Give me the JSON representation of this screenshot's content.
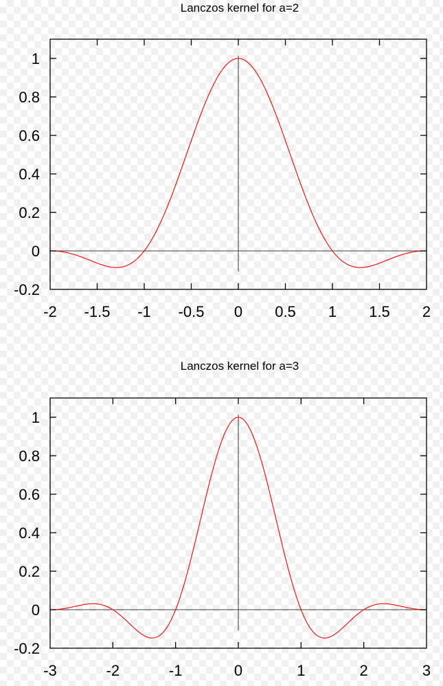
{
  "chart_data": [
    {
      "type": "line",
      "title": "Lanczos kernel for a=2",
      "xlabel": "",
      "ylabel": "",
      "a": 2,
      "xlim": [
        -2,
        2
      ],
      "ylim": [
        -0.2,
        1.1
      ],
      "x_ticks": [
        -2,
        -1.5,
        -1,
        -0.5,
        0,
        0.5,
        1,
        1.5,
        2
      ],
      "x_tick_labels": [
        "-2",
        "-1.5",
        "-1",
        "-0.5",
        "0",
        "0.5",
        "1",
        "1.5",
        "2"
      ],
      "y_ticks": [
        -0.2,
        0,
        0.2,
        0.4,
        0.6,
        0.8,
        1
      ],
      "y_tick_labels": [
        "-0.2",
        "0",
        "0.2",
        "0.4",
        "0.6",
        "0.8",
        "1"
      ],
      "zero_axes": true,
      "grid": false,
      "line_color": "#ff0000",
      "series": [
        {
          "x": [
            -2,
            -1.75,
            -1.5,
            -1.25,
            -1,
            -0.75,
            -0.5,
            -0.25,
            0,
            0.25,
            0.5,
            0.75,
            1,
            1.25,
            1.5,
            1.75,
            2
          ],
          "y": [
            0,
            -0.0336,
            -0.08,
            -0.0848,
            0,
            0.2207,
            0.5732,
            0.8888,
            1,
            0.8888,
            0.5732,
            0.2207,
            0,
            -0.0848,
            -0.08,
            -0.0336,
            0
          ]
        }
      ]
    },
    {
      "type": "line",
      "title": "Lanczos kernel for a=3",
      "xlabel": "",
      "ylabel": "",
      "a": 3,
      "xlim": [
        -3,
        3
      ],
      "ylim": [
        -0.2,
        1.1
      ],
      "x_ticks": [
        -3,
        -2,
        -1,
        0,
        1,
        2,
        3
      ],
      "x_tick_labels": [
        "-3",
        "-2",
        "-1",
        "0",
        "1",
        "2",
        "3"
      ],
      "y_ticks": [
        -0.2,
        0,
        0.2,
        0.4,
        0.6,
        0.8,
        1
      ],
      "y_tick_labels": [
        "-0.2",
        "0",
        "0.2",
        "0.4",
        "0.6",
        "0.8",
        "1"
      ],
      "zero_axes": true,
      "grid": false,
      "line_color": "#ff0000",
      "series": [
        {
          "x": [
            -3,
            -2.5,
            -2,
            -1.5,
            -1,
            -0.5,
            0,
            0.5,
            1,
            1.5,
            2,
            2.5,
            3
          ],
          "y": [
            0,
            0.0243,
            0,
            -0.1351,
            0,
            0.6079,
            1,
            0.6079,
            0,
            -0.1351,
            0,
            0.0243,
            0
          ]
        }
      ]
    }
  ]
}
